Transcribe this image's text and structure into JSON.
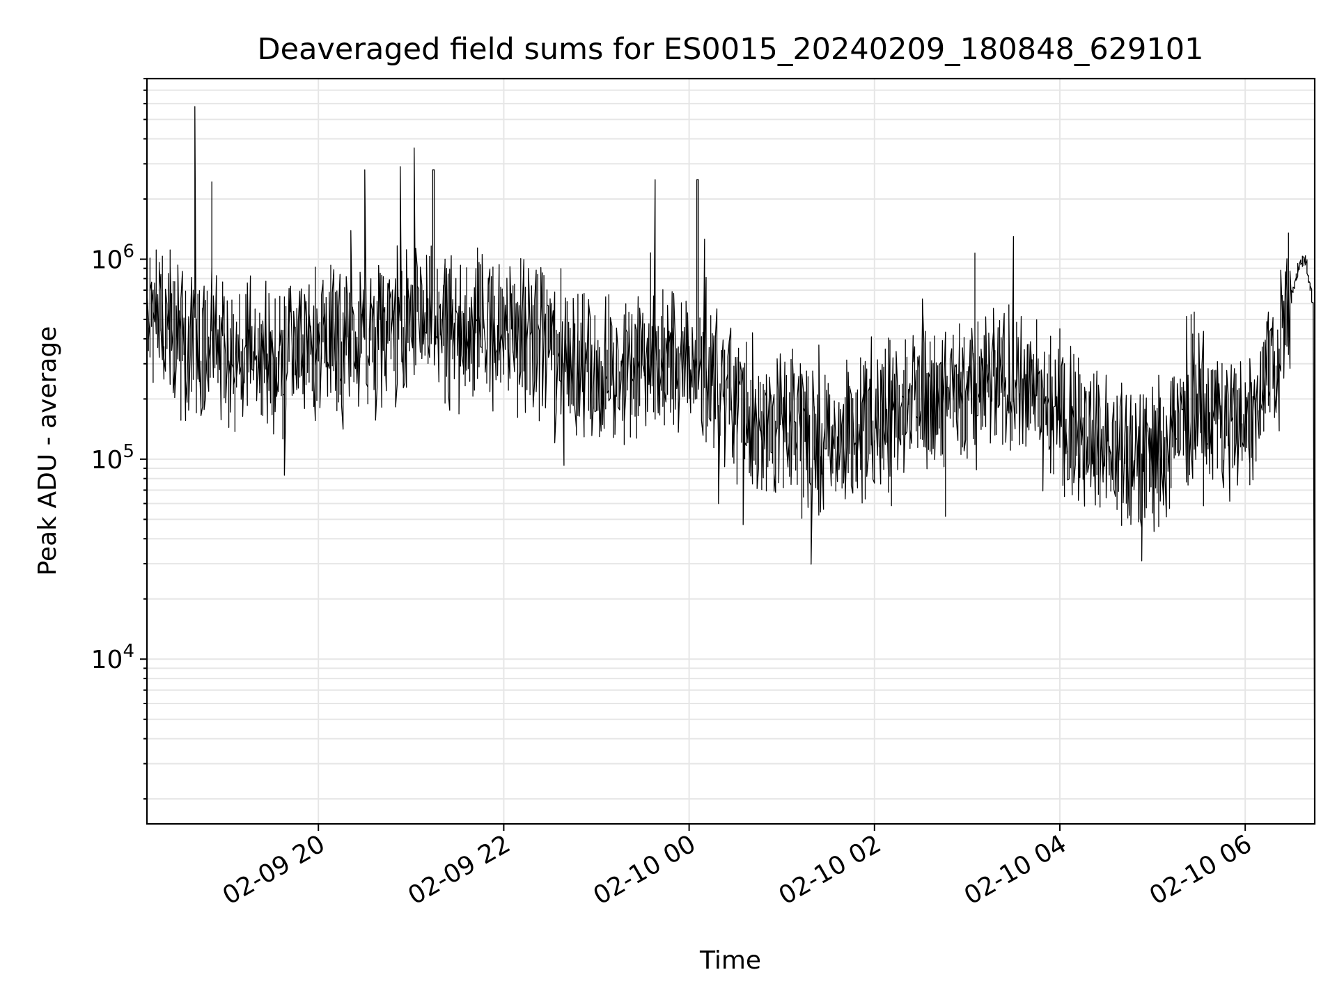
{
  "chart_data": {
    "type": "line",
    "title": "Deaveraged field sums for ES0015_20240209_180848_629101",
    "xlabel": "Time",
    "ylabel": "Peak ADU - average",
    "y_scale": "log",
    "ylim": [
      1500,
      8000000
    ],
    "xlim": [
      "2024-02-09 18:09",
      "2024-02-10 06:45"
    ],
    "grid": true,
    "x_ticks": [
      "02-09 20",
      "02-09 22",
      "02-10 00",
      "02-10 02",
      "02-10 04",
      "02-10 06"
    ],
    "x_tick_times": [
      "2024-02-09 20:00",
      "2024-02-09 22:00",
      "2024-02-10 00:00",
      "2024-02-10 02:00",
      "2024-02-10 04:00",
      "2024-02-10 06:00"
    ],
    "y_ticks": [
      {
        "base": "10",
        "exp": "4",
        "value": 10000
      },
      {
        "base": "10",
        "exp": "5",
        "value": 100000
      },
      {
        "base": "10",
        "exp": "6",
        "value": 1000000
      }
    ],
    "series": [
      {
        "line_color": "#000000",
        "x": [
          "2024-02-09 18:09",
          "2024-02-09 18:30",
          "2024-02-09 18:40",
          "2024-02-09 19:00",
          "2024-02-09 19:30",
          "2024-02-09 19:45",
          "2024-02-09 20:00",
          "2024-02-09 20:30",
          "2024-02-09 21:00",
          "2024-02-09 21:30",
          "2024-02-09 22:00",
          "2024-02-09 22:30",
          "2024-02-09 23:00",
          "2024-02-09 23:30",
          "2024-02-10 00:00",
          "2024-02-10 00:30",
          "2024-02-10 01:00",
          "2024-02-10 01:30",
          "2024-02-10 02:00",
          "2024-02-10 02:30",
          "2024-02-10 03:00",
          "2024-02-10 03:30",
          "2024-02-10 04:00",
          "2024-02-10 04:30",
          "2024-02-10 05:00",
          "2024-02-10 05:30",
          "2024-02-10 06:00",
          "2024-02-10 06:20",
          "2024-02-10 06:35",
          "2024-02-10 06:40",
          "2024-02-10 06:44",
          "2024-02-10 06:45"
        ],
        "y": [
          600000,
          400000,
          380000,
          350000,
          300000,
          330000,
          380000,
          380000,
          500000,
          420000,
          400000,
          380000,
          280000,
          280000,
          300000,
          200000,
          140000,
          120000,
          160000,
          200000,
          220000,
          250000,
          180000,
          110000,
          100000,
          180000,
          150000,
          300000,
          900000,
          1000000,
          600000,
          1500
        ],
        "spike_x": [
          "2024-02-09 18:41",
          "2024-02-09 21:03",
          "2024-02-09 20:54",
          "2024-02-09 21:15",
          "2024-02-09 20:31",
          "2024-02-09 23:38",
          "2024-02-10 00:06",
          "2024-02-10 03:30",
          "2024-02-10 04:54"
        ],
        "spike_y": [
          5800000,
          3600000,
          2900000,
          2800000,
          2800000,
          2500000,
          2500000,
          1300000,
          31000
        ]
      }
    ]
  }
}
